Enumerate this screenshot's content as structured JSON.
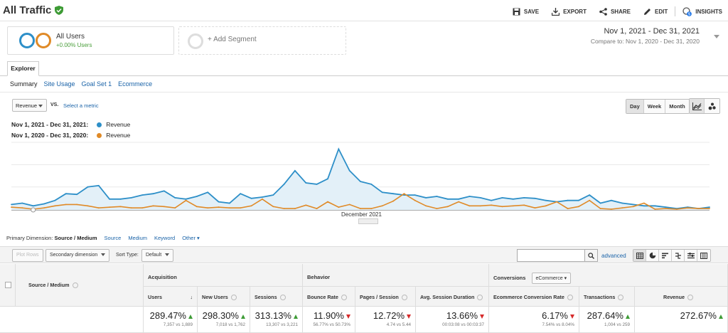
{
  "header": {
    "title": "All Traffic",
    "actions": {
      "save": "SAVE",
      "export": "EXPORT",
      "share": "SHARE",
      "edit": "EDIT",
      "insights": "INSIGHTS"
    },
    "insights_badge": "5"
  },
  "segments": {
    "active": {
      "name": "All Users",
      "change": "+0.00% Users"
    },
    "add_label": "+ Add Segment"
  },
  "date_range": {
    "primary": "Nov 1, 2021 - Dec 31, 2021",
    "compare_prefix": "Compare to:",
    "compare": "Nov 1, 2020 - Dec 31, 2020"
  },
  "tabs": {
    "explorer": "Explorer"
  },
  "subtabs": [
    "Summary",
    "Site Usage",
    "Goal Set 1",
    "Ecommerce"
  ],
  "metric": {
    "selected": "Revenue",
    "vs": "VS.",
    "select_label": "Select a metric"
  },
  "granularity": [
    "Day",
    "Week",
    "Month"
  ],
  "legend": [
    {
      "range": "Nov 1, 2021 - Dec 31, 2021:",
      "name": "Revenue",
      "color": "#2d8fc8"
    },
    {
      "range": "Nov 1, 2020 - Dec 31, 2020:",
      "name": "Revenue",
      "color": "#e08a27"
    }
  ],
  "chart_data": {
    "type": "line",
    "x_label": "December 2021",
    "series": [
      {
        "name": "Revenue",
        "color": "#2d8fc8",
        "values": [
          8,
          10,
          6,
          9,
          14,
          24,
          23,
          34,
          36,
          16,
          16,
          18,
          22,
          24,
          28,
          18,
          16,
          20,
          26,
          12,
          10,
          24,
          17,
          19,
          22,
          38,
          58,
          40,
          38,
          46,
          90,
          58,
          42,
          38,
          26,
          24,
          22,
          22,
          18,
          20,
          16,
          16,
          20,
          18,
          14,
          18,
          16,
          18,
          17,
          14,
          12,
          14,
          14,
          22,
          10,
          14,
          10,
          8,
          6,
          6,
          4,
          2,
          4,
          2,
          4
        ]
      },
      {
        "name": "Revenue",
        "color": "#e08a27",
        "values": [
          4,
          3,
          1,
          3,
          6,
          8,
          8,
          6,
          3,
          4,
          5,
          3,
          3,
          6,
          5,
          3,
          14,
          5,
          3,
          4,
          3,
          3,
          6,
          16,
          5,
          2,
          2,
          7,
          2,
          12,
          4,
          8,
          2,
          2,
          6,
          13,
          24,
          14,
          6,
          2,
          5,
          12,
          6,
          6,
          7,
          5,
          6,
          7,
          3,
          6,
          12,
          2,
          5,
          14,
          2,
          1,
          3,
          5,
          10,
          1,
          2,
          1,
          3,
          2,
          2
        ]
      }
    ]
  },
  "primary_dimension": {
    "label": "Primary Dimension:",
    "current": "Source / Medium",
    "options": [
      "Source",
      "Medium",
      "Keyword",
      "Other"
    ]
  },
  "controls": {
    "plot_rows": "Plot Rows",
    "secondary": "Secondary dimension",
    "sort_label": "Sort Type:",
    "sort_value": "Default",
    "advanced": "advanced"
  },
  "table": {
    "dimension_header": "Source / Medium",
    "groups": {
      "acquisition": "Acquisition",
      "behavior": "Behavior",
      "conversions": "Conversions",
      "conversions_select": "eCommerce"
    },
    "columns": [
      {
        "label": "Users",
        "value": "289.47%",
        "detail": "7,357 vs 1,889",
        "trend": "up"
      },
      {
        "label": "New Users",
        "value": "298.30%",
        "detail": "7,018 vs 1,762",
        "trend": "up"
      },
      {
        "label": "Sessions",
        "value": "313.13%",
        "detail": "13,307 vs 3,221",
        "trend": "up"
      },
      {
        "label": "Bounce Rate",
        "value": "11.90%",
        "detail": "56.77% vs 50.73%",
        "trend": "down"
      },
      {
        "label": "Pages / Session",
        "value": "12.72%",
        "detail": "4.74 vs 5.44",
        "trend": "down"
      },
      {
        "label": "Avg. Session Duration",
        "value": "13.66%",
        "detail": "00:03:08 vs 00:03:37",
        "trend": "down"
      },
      {
        "label": "Ecommerce Conversion Rate",
        "value": "6.17%",
        "detail": "7.54% vs 8.04%",
        "trend": "down"
      },
      {
        "label": "Transactions",
        "value": "287.64%",
        "detail": "1,004 vs 259",
        "trend": "up"
      },
      {
        "label": "Revenue",
        "value": "272.67%",
        "detail": "",
        "trend": "up"
      }
    ]
  }
}
